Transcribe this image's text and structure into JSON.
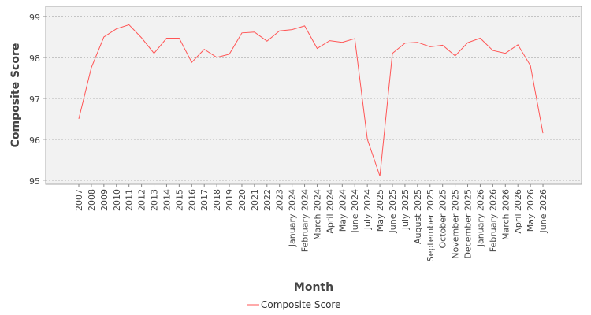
{
  "chart_data": {
    "type": "line",
    "xlabel": "Month",
    "ylabel": "Composite Score",
    "ylim": [
      94.9,
      99.25
    ],
    "yticks": [
      95,
      96,
      97,
      98,
      99
    ],
    "grid": "horizontal, dashed",
    "legend_placement": "bottom-center",
    "x": [
      "2007",
      "2008",
      "2009",
      "2010",
      "2011",
      "2012",
      "2013",
      "2014",
      "2015",
      "2016",
      "2017",
      "2018",
      "2019",
      "2020",
      "2021",
      "2022",
      "2023",
      "January 2024",
      "February 2024",
      "March 2024",
      "April 2024",
      "May 2024",
      "June 2024",
      "July 2024",
      "May 2025",
      "June 2025",
      "July 2025",
      "August 2025",
      "September 2025",
      "October 2025",
      "November 2025",
      "December 2025",
      "January 2026",
      "February 2026",
      "March 2026",
      "April 2026",
      "May 2026",
      "June 2026"
    ],
    "series": [
      {
        "name": "Composite Score",
        "color": "#ff5555",
        "values": [
          96.5,
          97.75,
          98.5,
          98.7,
          98.8,
          98.48,
          98.1,
          98.47,
          98.47,
          97.88,
          98.2,
          98.0,
          98.08,
          98.6,
          98.62,
          98.4,
          98.65,
          98.68,
          98.77,
          98.22,
          98.41,
          98.37,
          98.46,
          96.0,
          95.1,
          98.1,
          98.35,
          98.37,
          98.26,
          98.3,
          98.04,
          98.36,
          98.47,
          98.17,
          98.1,
          98.31,
          97.8,
          96.15
        ]
      }
    ]
  }
}
